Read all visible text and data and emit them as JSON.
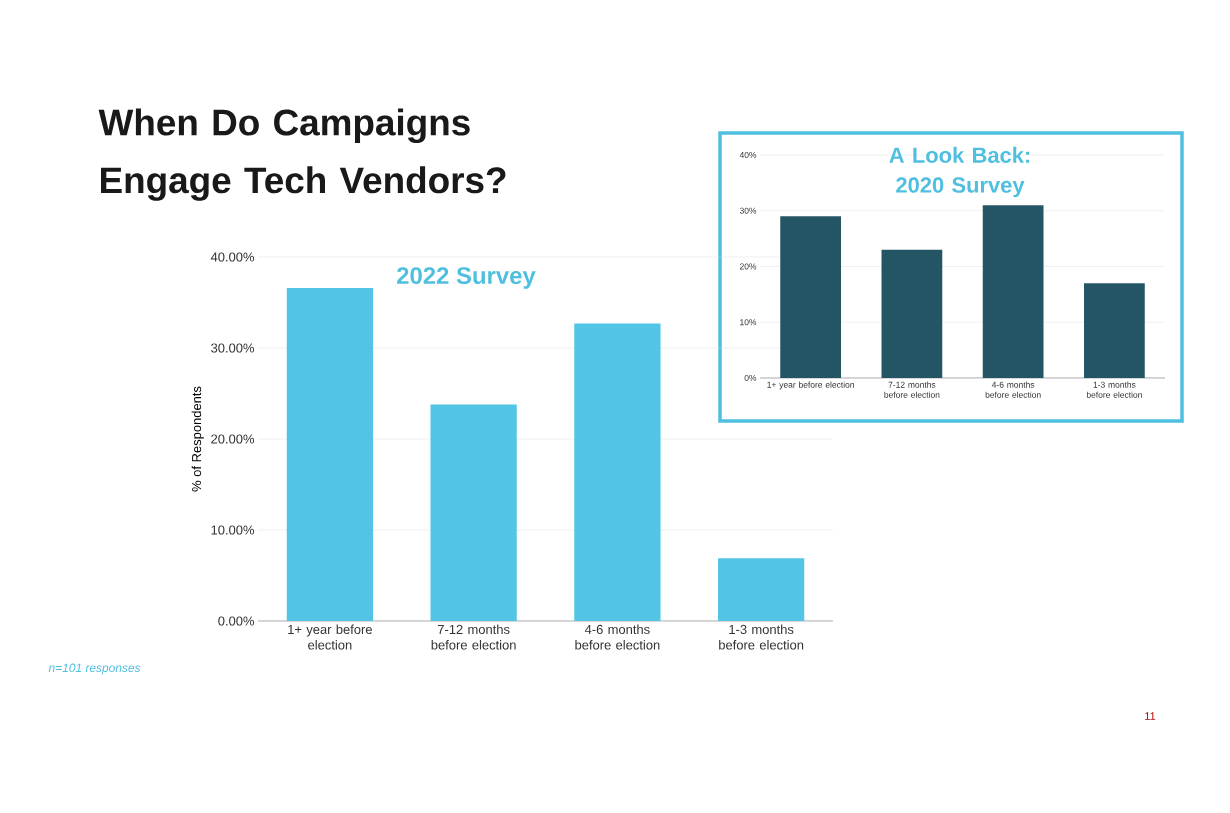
{
  "chart_data": [
    {
      "type": "bar",
      "title": "When Do Campaigns Engage Tech Vendors?",
      "subtitle": "2022 Survey",
      "ylabel": "% of Respondents",
      "categories": [
        "1+ year before election",
        "7-12 months before election",
        "4-6 months before election",
        "1-3 months before election"
      ],
      "values": [
        36.6,
        23.8,
        32.7,
        6.9
      ],
      "color": "#52c4e6",
      "ylim": [
        0,
        40
      ],
      "yticks": [
        {
          "value": 0,
          "label": "0.00%"
        },
        {
          "value": 10,
          "label": "10.00%"
        },
        {
          "value": 20,
          "label": "20.00%"
        },
        {
          "value": 30,
          "label": "30.00%"
        },
        {
          "value": 40,
          "label": "40.00%"
        }
      ],
      "grid": "y",
      "annotations": [
        "n=101 responses",
        "11"
      ]
    },
    {
      "type": "bar",
      "title": "A Look Back: 2020 Survey",
      "categories": [
        "1+ year before election",
        "7-12 months before election",
        "4-6 months before election",
        "1-3 months before election"
      ],
      "values": [
        29,
        23,
        31,
        17
      ],
      "color": "#245565",
      "ylim": [
        0,
        40
      ],
      "yticks": [
        {
          "value": 0,
          "label": "0%"
        },
        {
          "value": 10,
          "label": "10%"
        },
        {
          "value": 20,
          "label": "20%"
        },
        {
          "value": 30,
          "label": "30%"
        },
        {
          "value": 40,
          "label": "40%"
        }
      ],
      "grid": "y"
    }
  ]
}
